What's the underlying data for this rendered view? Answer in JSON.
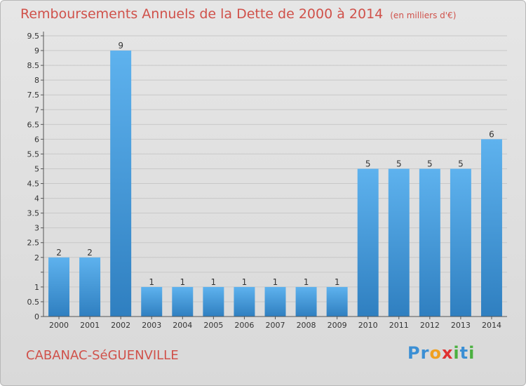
{
  "title": "Remboursements Annuels de la Dette de 2000 à 2014",
  "subtitle": "(en milliers d'€)",
  "commune": "CABANAC-SéGUENVILLE",
  "logo": {
    "letters": [
      {
        "char": "P",
        "color": "#3b8fd4"
      },
      {
        "char": "r",
        "color": "#3b8fd4"
      },
      {
        "char": "o",
        "color": "#f0a020"
      },
      {
        "char": "x",
        "color": "#e03030"
      },
      {
        "char": "i",
        "color": "#4bb040"
      },
      {
        "char": "t",
        "color": "#3b8fd4"
      },
      {
        "char": "i",
        "color": "#4bb040"
      }
    ]
  },
  "chart_data": {
    "type": "bar",
    "categories": [
      "2000",
      "2001",
      "2002",
      "2003",
      "2004",
      "2005",
      "2006",
      "2007",
      "2008",
      "2009",
      "2010",
      "2011",
      "2012",
      "2013",
      "2014"
    ],
    "values": [
      2,
      2,
      9,
      1,
      1,
      1,
      1,
      1,
      1,
      1,
      5,
      5,
      5,
      5,
      6
    ],
    "data_labels": [
      "2",
      "2",
      "9",
      "1",
      "1",
      "1",
      "1",
      "1",
      "1",
      "1",
      "5",
      "5",
      "5",
      "5",
      "6"
    ],
    "title": "Remboursements Annuels de la Dette de 2000 à 2014",
    "xlabel": "",
    "ylabel": "",
    "ylim": [
      0,
      9.5
    ],
    "yticks": [
      0,
      0.5,
      1,
      1.5,
      2,
      2.5,
      3,
      3.5,
      4,
      4.5,
      5,
      5.5,
      6,
      6.5,
      7,
      7.5,
      8,
      8.5,
      9,
      9.5
    ],
    "ytick_labels": [
      "0",
      "0.5",
      "1",
      "",
      "2",
      "2.5",
      "3",
      "3.5",
      "4",
      "4.5",
      "5",
      "5.5",
      "6",
      "6.5",
      "7",
      "7.5",
      "8",
      "8.5",
      "9",
      "9.5"
    ],
    "grid": true,
    "bar_color": "#4a9fdf"
  }
}
